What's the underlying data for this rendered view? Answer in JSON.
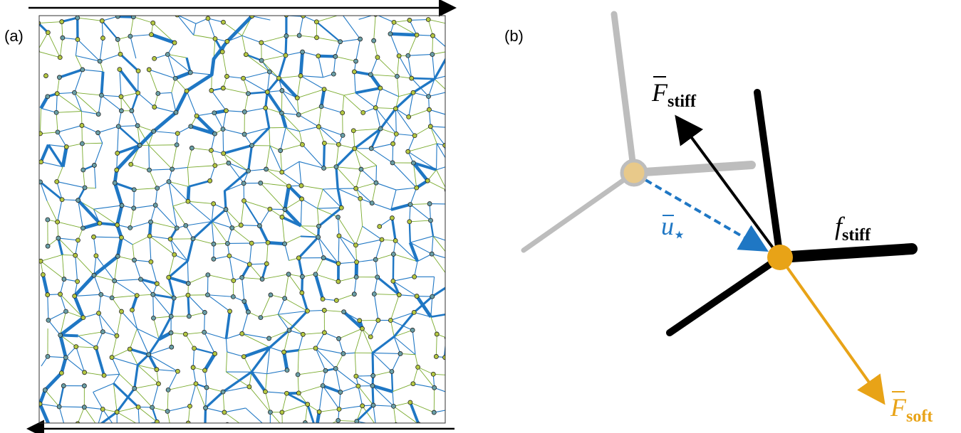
{
  "panels": [
    {
      "label": "(a)"
    },
    {
      "label": "(b)",
      "annotations": [
        {
          "symbol": "F",
          "subscript": "stiff"
        },
        {
          "symbol": "u",
          "subscript": "⋆"
        },
        {
          "symbol": "f",
          "subscript": "stiff"
        },
        {
          "symbol": "F",
          "subscript": "soft"
        }
      ]
    }
  ]
}
